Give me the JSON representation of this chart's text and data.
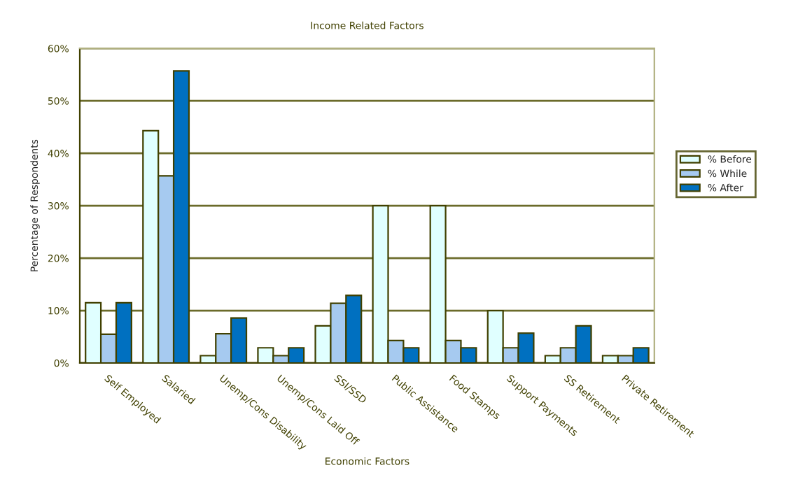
{
  "chart_data": {
    "type": "bar",
    "title": "Income Related Factors",
    "xlabel": "Economic Factors",
    "ylabel": "Percentage of Respondents",
    "categories": [
      "Self Employed",
      "Salaried",
      "Unemp/Cons Disability",
      "Unemp/Cons Laid Off",
      "SSI/SSD",
      "Public Assistance",
      "Food Stamps",
      "Support Payments",
      "SS Retirement",
      "Private Retirement"
    ],
    "series": [
      {
        "name": "% Before",
        "color": "#e0ffff",
        "values": [
          11.5,
          44.3,
          1.4,
          2.9,
          7.1,
          30,
          30,
          10,
          1.4,
          1.4
        ]
      },
      {
        "name": "% While",
        "color": "#a6caf0",
        "values": [
          5.5,
          35.7,
          5.6,
          1.4,
          11.4,
          4.3,
          4.3,
          2.9,
          2.9,
          1.4
        ]
      },
      {
        "name": "% After",
        "color": "#0070c0",
        "values": [
          11.5,
          55.7,
          8.6,
          2.9,
          12.9,
          2.9,
          2.9,
          5.7,
          7.1,
          2.9
        ]
      }
    ],
    "ylim": [
      0,
      60
    ],
    "yticks": [
      {
        "value": 0,
        "label": "0%"
      },
      {
        "value": 10,
        "label": "10%"
      },
      {
        "value": 20,
        "label": "20%"
      },
      {
        "value": 30,
        "label": "30%"
      },
      {
        "value": 40,
        "label": "40%"
      },
      {
        "value": 50,
        "label": "50%"
      },
      {
        "value": 60,
        "label": "60%"
      }
    ],
    "grid": "y",
    "legend": "right"
  }
}
